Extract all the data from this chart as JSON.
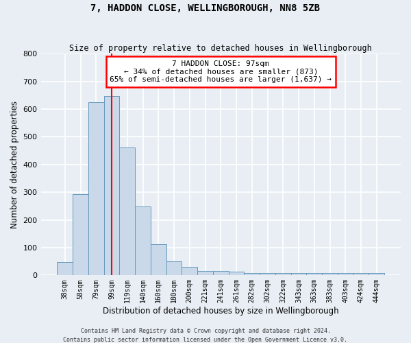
{
  "title": "7, HADDON CLOSE, WELLINGBOROUGH, NN8 5ZB",
  "subtitle": "Size of property relative to detached houses in Wellingborough",
  "xlabel": "Distribution of detached houses by size in Wellingborough",
  "ylabel": "Number of detached properties",
  "categories": [
    "38sqm",
    "58sqm",
    "79sqm",
    "99sqm",
    "119sqm",
    "140sqm",
    "160sqm",
    "180sqm",
    "200sqm",
    "221sqm",
    "241sqm",
    "261sqm",
    "282sqm",
    "302sqm",
    "322sqm",
    "343sqm",
    "363sqm",
    "383sqm",
    "403sqm",
    "424sqm",
    "444sqm"
  ],
  "values": [
    48,
    293,
    625,
    648,
    461,
    248,
    112,
    50,
    30,
    15,
    15,
    12,
    8,
    8,
    8,
    8,
    8,
    8,
    8,
    8,
    8
  ],
  "bar_color": "#c9d9ea",
  "bar_edge_color": "#6699bb",
  "annotation_text_line1": "7 HADDON CLOSE: 97sqm",
  "annotation_text_line2": "← 34% of detached houses are smaller (873)",
  "annotation_text_line3": "65% of semi-detached houses are larger (1,637) →",
  "annotation_box_color": "white",
  "annotation_box_edge_color": "red",
  "vline_color": "red",
  "vline_x": 3.0,
  "ylim": [
    0,
    800
  ],
  "yticks": [
    0,
    100,
    200,
    300,
    400,
    500,
    600,
    700,
    800
  ],
  "footer_line1": "Contains HM Land Registry data © Crown copyright and database right 2024.",
  "footer_line2": "Contains public sector information licensed under the Open Government Licence v3.0.",
  "background_color": "#e8eef4",
  "grid_color": "white"
}
